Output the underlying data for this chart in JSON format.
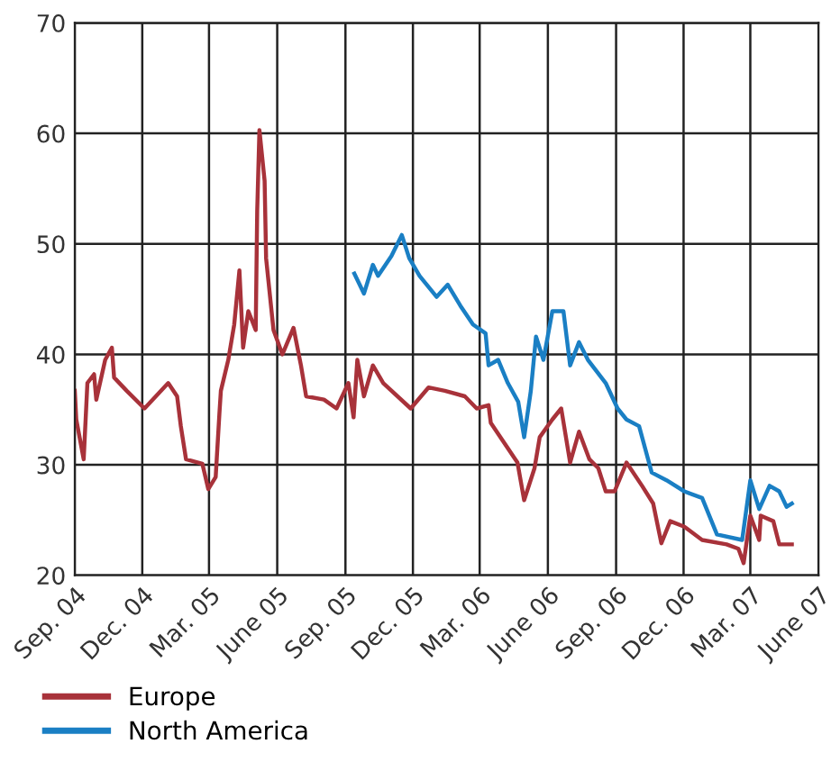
{
  "chart_data": {
    "type": "line",
    "xlim": [
      "2004-09-01",
      "2007-06-01"
    ],
    "ylim": [
      20,
      70
    ],
    "yticks": [
      20,
      30,
      40,
      50,
      60,
      70
    ],
    "xticks": [
      {
        "value": "2004-09-01",
        "label": "Sep. 04"
      },
      {
        "value": "2004-12-01",
        "label": "Dec. 04"
      },
      {
        "value": "2005-03-01",
        "label": "Mar. 05"
      },
      {
        "value": "2005-06-01",
        "label": "June 05"
      },
      {
        "value": "2005-09-01",
        "label": "Sep. 05"
      },
      {
        "value": "2005-12-01",
        "label": "Dec. 05"
      },
      {
        "value": "2006-03-01",
        "label": "Mar. 06"
      },
      {
        "value": "2006-06-01",
        "label": "June 06"
      },
      {
        "value": "2006-09-01",
        "label": "Sep. 06"
      },
      {
        "value": "2006-12-01",
        "label": "Dec. 06"
      },
      {
        "value": "2007-03-01",
        "label": "Mar. 07"
      },
      {
        "value": "2007-06-01",
        "label": "June 07"
      }
    ],
    "grid": true,
    "legend": "bottom left",
    "marker": "none",
    "line_style": "solid",
    "series": [
      {
        "name": "Europe",
        "color": "#a8323a",
        "x": [
          "2004-09-01",
          "2004-09-03",
          "2004-09-13",
          "2004-09-18",
          "2004-09-27",
          "2004-09-30",
          "2004-10-12",
          "2004-10-21",
          "2004-10-24",
          "2004-11-10",
          "2004-12-04",
          "2005-01-05",
          "2005-01-17",
          "2005-01-22",
          "2005-01-29",
          "2005-02-20",
          "2005-02-28",
          "2005-03-10",
          "2005-03-15",
          "2005-03-17",
          "2005-03-27",
          "2005-04-04",
          "2005-04-08",
          "2005-04-11",
          "2005-04-16",
          "2005-04-23",
          "2005-05-03",
          "2005-05-05",
          "2005-05-08",
          "2005-05-15",
          "2005-05-17",
          "2005-05-27",
          "2005-06-08",
          "2005-06-23",
          "2005-07-03",
          "2005-07-10",
          "2005-08-03",
          "2005-08-20",
          "2005-09-05",
          "2005-09-12",
          "2005-09-17",
          "2005-09-26",
          "2005-10-08",
          "2005-10-22",
          "2005-11-28",
          "2005-12-22",
          "2006-01-13",
          "2006-02-09",
          "2006-02-25",
          "2006-03-13",
          "2006-03-16",
          "2006-04-04",
          "2006-04-21",
          "2006-04-30",
          "2006-05-14",
          "2006-05-21",
          "2006-06-07",
          "2006-06-19",
          "2006-07-01",
          "2006-07-13",
          "2006-07-27",
          "2006-08-08",
          "2006-08-18",
          "2006-08-30",
          "2006-09-15",
          "2006-10-06",
          "2006-10-21",
          "2006-11-01",
          "2006-11-13",
          "2006-12-02",
          "2006-12-26",
          "2007-01-28",
          "2007-02-13",
          "2007-02-20",
          "2007-03-01",
          "2007-03-13",
          "2007-03-15",
          "2007-04-01",
          "2007-04-09",
          "2007-04-26"
        ],
        "values": [
          36.7,
          34.1,
          30.5,
          37.4,
          38.2,
          35.9,
          39.5,
          40.6,
          37.9,
          36.7,
          35.1,
          37.4,
          36.2,
          33.5,
          30.5,
          30.1,
          27.8,
          28.9,
          34.6,
          36.7,
          39.5,
          42.7,
          45.5,
          47.6,
          40.6,
          43.9,
          42.2,
          53.0,
          60.3,
          55.7,
          48.7,
          42.2,
          40.0,
          42.4,
          39.0,
          36.2,
          35.9,
          35.1,
          37.4,
          34.3,
          39.5,
          36.2,
          39.0,
          37.4,
          35.1,
          37.0,
          36.7,
          36.2,
          35.1,
          35.4,
          33.8,
          31.9,
          30.2,
          26.8,
          29.7,
          32.5,
          34.1,
          35.1,
          30.2,
          33.0,
          30.5,
          29.7,
          27.6,
          27.6,
          30.2,
          28.1,
          26.5,
          22.9,
          24.9,
          24.4,
          23.2,
          22.8,
          22.4,
          21.1,
          25.4,
          23.2,
          25.4,
          24.9,
          22.8,
          22.8
        ]
      },
      {
        "name": "North America",
        "color": "#1a7fc4",
        "x": [
          "2005-09-13",
          "2005-09-26",
          "2005-10-08",
          "2005-10-15",
          "2005-11-02",
          "2005-11-16",
          "2005-11-26",
          "2005-12-10",
          "2006-01-02",
          "2006-01-17",
          "2006-02-03",
          "2006-02-20",
          "2006-03-09",
          "2006-03-13",
          "2006-03-26",
          "2006-04-08",
          "2006-04-22",
          "2006-04-30",
          "2006-05-09",
          "2006-05-16",
          "2006-05-26",
          "2006-06-07",
          "2006-06-22",
          "2006-07-01",
          "2006-07-13",
          "2006-07-25",
          "2006-08-18",
          "2006-09-03",
          "2006-09-15",
          "2006-10-02",
          "2006-10-19",
          "2006-11-08",
          "2006-12-02",
          "2006-12-26",
          "2007-01-15",
          "2007-02-18",
          "2007-03-01",
          "2007-03-13",
          "2007-03-27",
          "2007-04-09",
          "2007-04-19",
          "2007-04-26"
        ],
        "values": [
          47.3,
          45.5,
          48.1,
          47.1,
          48.9,
          50.8,
          48.7,
          47.1,
          45.2,
          46.3,
          44.4,
          42.7,
          41.9,
          39.0,
          39.5,
          37.4,
          35.7,
          32.5,
          36.7,
          41.6,
          39.5,
          43.9,
          43.9,
          39.0,
          41.1,
          39.5,
          37.4,
          35.1,
          34.1,
          33.5,
          29.3,
          28.6,
          27.6,
          27.0,
          23.7,
          23.2,
          28.6,
          26.0,
          28.1,
          27.6,
          26.2,
          26.5
        ]
      }
    ]
  }
}
